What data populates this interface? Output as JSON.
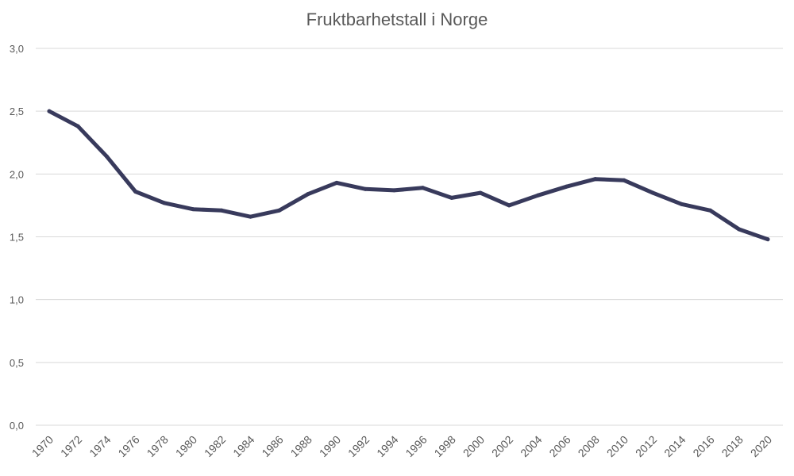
{
  "chart_data": {
    "type": "line",
    "title": "Fruktbarhetstall i Norge",
    "xlabel": "",
    "ylabel": "",
    "ylim": [
      0,
      3
    ],
    "grid": true,
    "yticks": [
      "0,0",
      "0,5",
      "1,0",
      "1,5",
      "2,0",
      "2,5",
      "3,0"
    ],
    "x": [
      "1970",
      "1972",
      "1974",
      "1976",
      "1978",
      "1980",
      "1982",
      "1984",
      "1986",
      "1988",
      "1990",
      "1992",
      "1994",
      "1996",
      "1998",
      "2000",
      "2002",
      "2004",
      "2006",
      "2008",
      "2010",
      "2012",
      "2014",
      "2016",
      "2018",
      "2020"
    ],
    "series": [
      {
        "color": "#383a5c",
        "values": [
          2.5,
          2.38,
          2.14,
          1.86,
          1.77,
          1.72,
          1.71,
          1.66,
          1.71,
          1.84,
          1.93,
          1.88,
          1.87,
          1.89,
          1.81,
          1.85,
          1.75,
          1.83,
          1.9,
          1.96,
          1.95,
          1.85,
          1.76,
          1.71,
          1.56,
          1.48
        ]
      }
    ]
  }
}
